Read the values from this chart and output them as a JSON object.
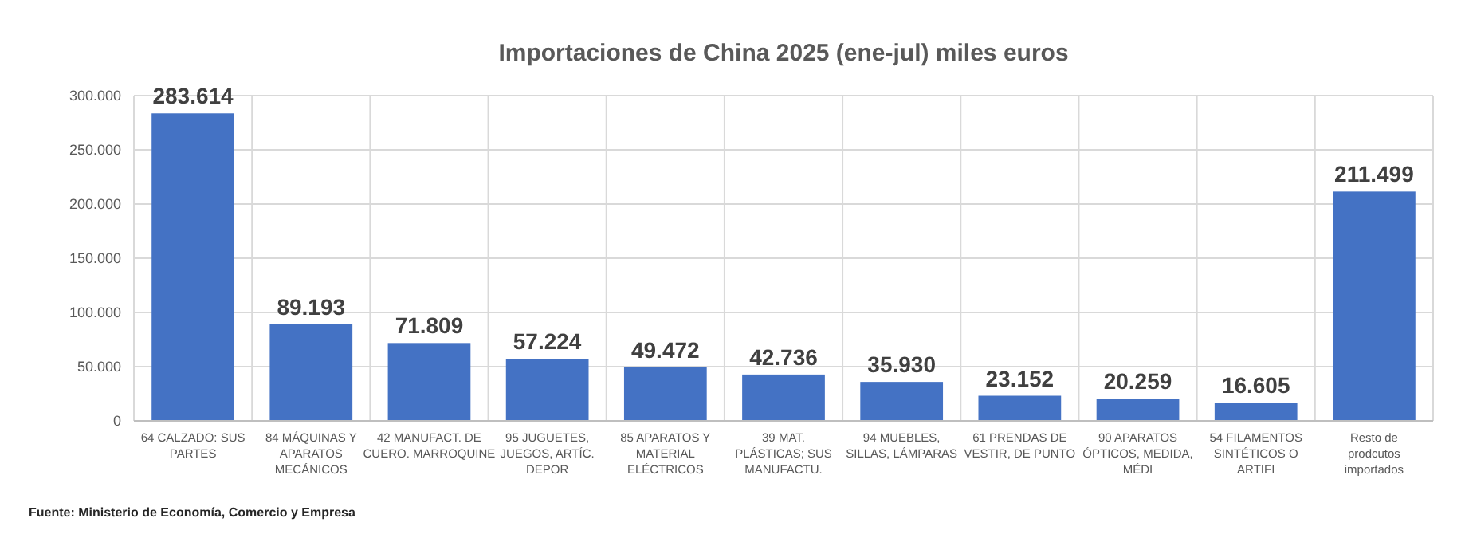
{
  "chart_data": {
    "type": "bar",
    "title": "Importaciones de China 2025 (ene-jul) miles euros",
    "categories": [
      "64 CALZADO: SUS PARTES",
      "84 MÁQUINAS Y APARATOS MECÁNICOS",
      "42 MANUFACT. DE CUERO. MARROQUINE",
      "95 JUGUETES, JUEGOS, ARTÍC. DEPOR",
      "85 APARATOS Y MATERIAL ELÉCTRICOS",
      "39 MAT. PLÁSTICAS; SUS MANUFACTU.",
      "94 MUEBLES, SILLAS, LÁMPARAS",
      "61 PRENDAS DE VESTIR, DE PUNTO",
      "90 APARATOS ÓPTICOS, MEDIDA, MÉDI",
      "54 FILAMENTOS SINTÉTICOS O ARTIFI",
      "Resto de prodcutos importados"
    ],
    "values": [
      283614,
      89193,
      71809,
      57224,
      49472,
      42736,
      35930,
      23152,
      20259,
      16605,
      211499
    ],
    "value_labels": [
      "283.614",
      "89.193",
      "71.809",
      "57.224",
      "49.472",
      "42.736",
      "35.930",
      "23.152",
      "20.259",
      "16.605",
      "211.499"
    ],
    "color": "#4472c4",
    "ylim": [
      0,
      300000
    ],
    "yticks": [
      {
        "value": 0,
        "label": "0"
      },
      {
        "value": 50000,
        "label": "50.000"
      },
      {
        "value": 100000,
        "label": "100.000"
      },
      {
        "value": 150000,
        "label": "150.000"
      },
      {
        "value": 200000,
        "label": "200.000"
      },
      {
        "value": 250000,
        "label": "250.000"
      },
      {
        "value": 300000,
        "label": "300.000"
      }
    ],
    "grid": true,
    "annotations": [
      "Fuente: Ministerio de Economía,  Comercio y Empresa"
    ]
  }
}
